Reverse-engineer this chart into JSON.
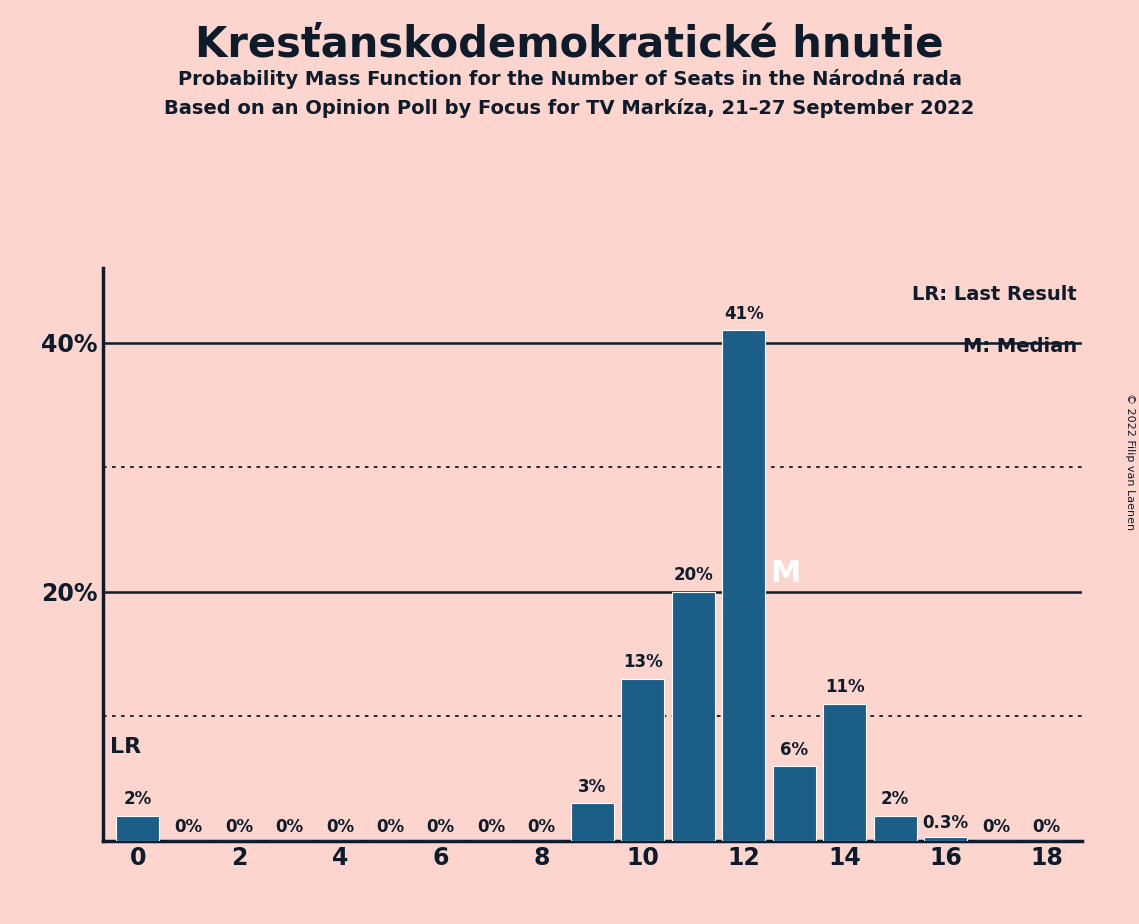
{
  "title": "Kresťanskodemokratické hnutie",
  "subtitle1": "Probability Mass Function for the Number of Seats in the Národná rada",
  "subtitle2": "Based on an Opinion Poll by Focus for TV Markíza, 21–27 September 2022",
  "copyright": "© 2022 Filip van Laenen",
  "background_color": "#fcd5ce",
  "bar_color": "#1b5e87",
  "seats": [
    0,
    1,
    2,
    3,
    4,
    5,
    6,
    7,
    8,
    9,
    10,
    11,
    12,
    13,
    14,
    15,
    16,
    17,
    18
  ],
  "probabilities": [
    2,
    0,
    0,
    0,
    0,
    0,
    0,
    0,
    0,
    3,
    13,
    20,
    41,
    6,
    11,
    2,
    0.3,
    0,
    0
  ],
  "labels": [
    "2%",
    "0%",
    "0%",
    "0%",
    "0%",
    "0%",
    "0%",
    "0%",
    "0%",
    "3%",
    "13%",
    "20%",
    "41%",
    "6%",
    "11%",
    "2%",
    "0.3%",
    "0%",
    "0%"
  ],
  "median_seat": 12,
  "lr_seat": 0,
  "xlim": [
    -0.7,
    18.7
  ],
  "ylim": [
    0,
    46
  ],
  "yticks": [
    0,
    20,
    40
  ],
  "ytick_labels": [
    "",
    "20%",
    "40%"
  ],
  "solid_lines": [
    20,
    40
  ],
  "dotted_lines": [
    10,
    30
  ],
  "lr_label": "LR",
  "median_label": "M",
  "legend_lr": "LR: Last Result",
  "legend_m": "M: Median",
  "bar_width": 0.85,
  "text_color": "#0d1b2a"
}
